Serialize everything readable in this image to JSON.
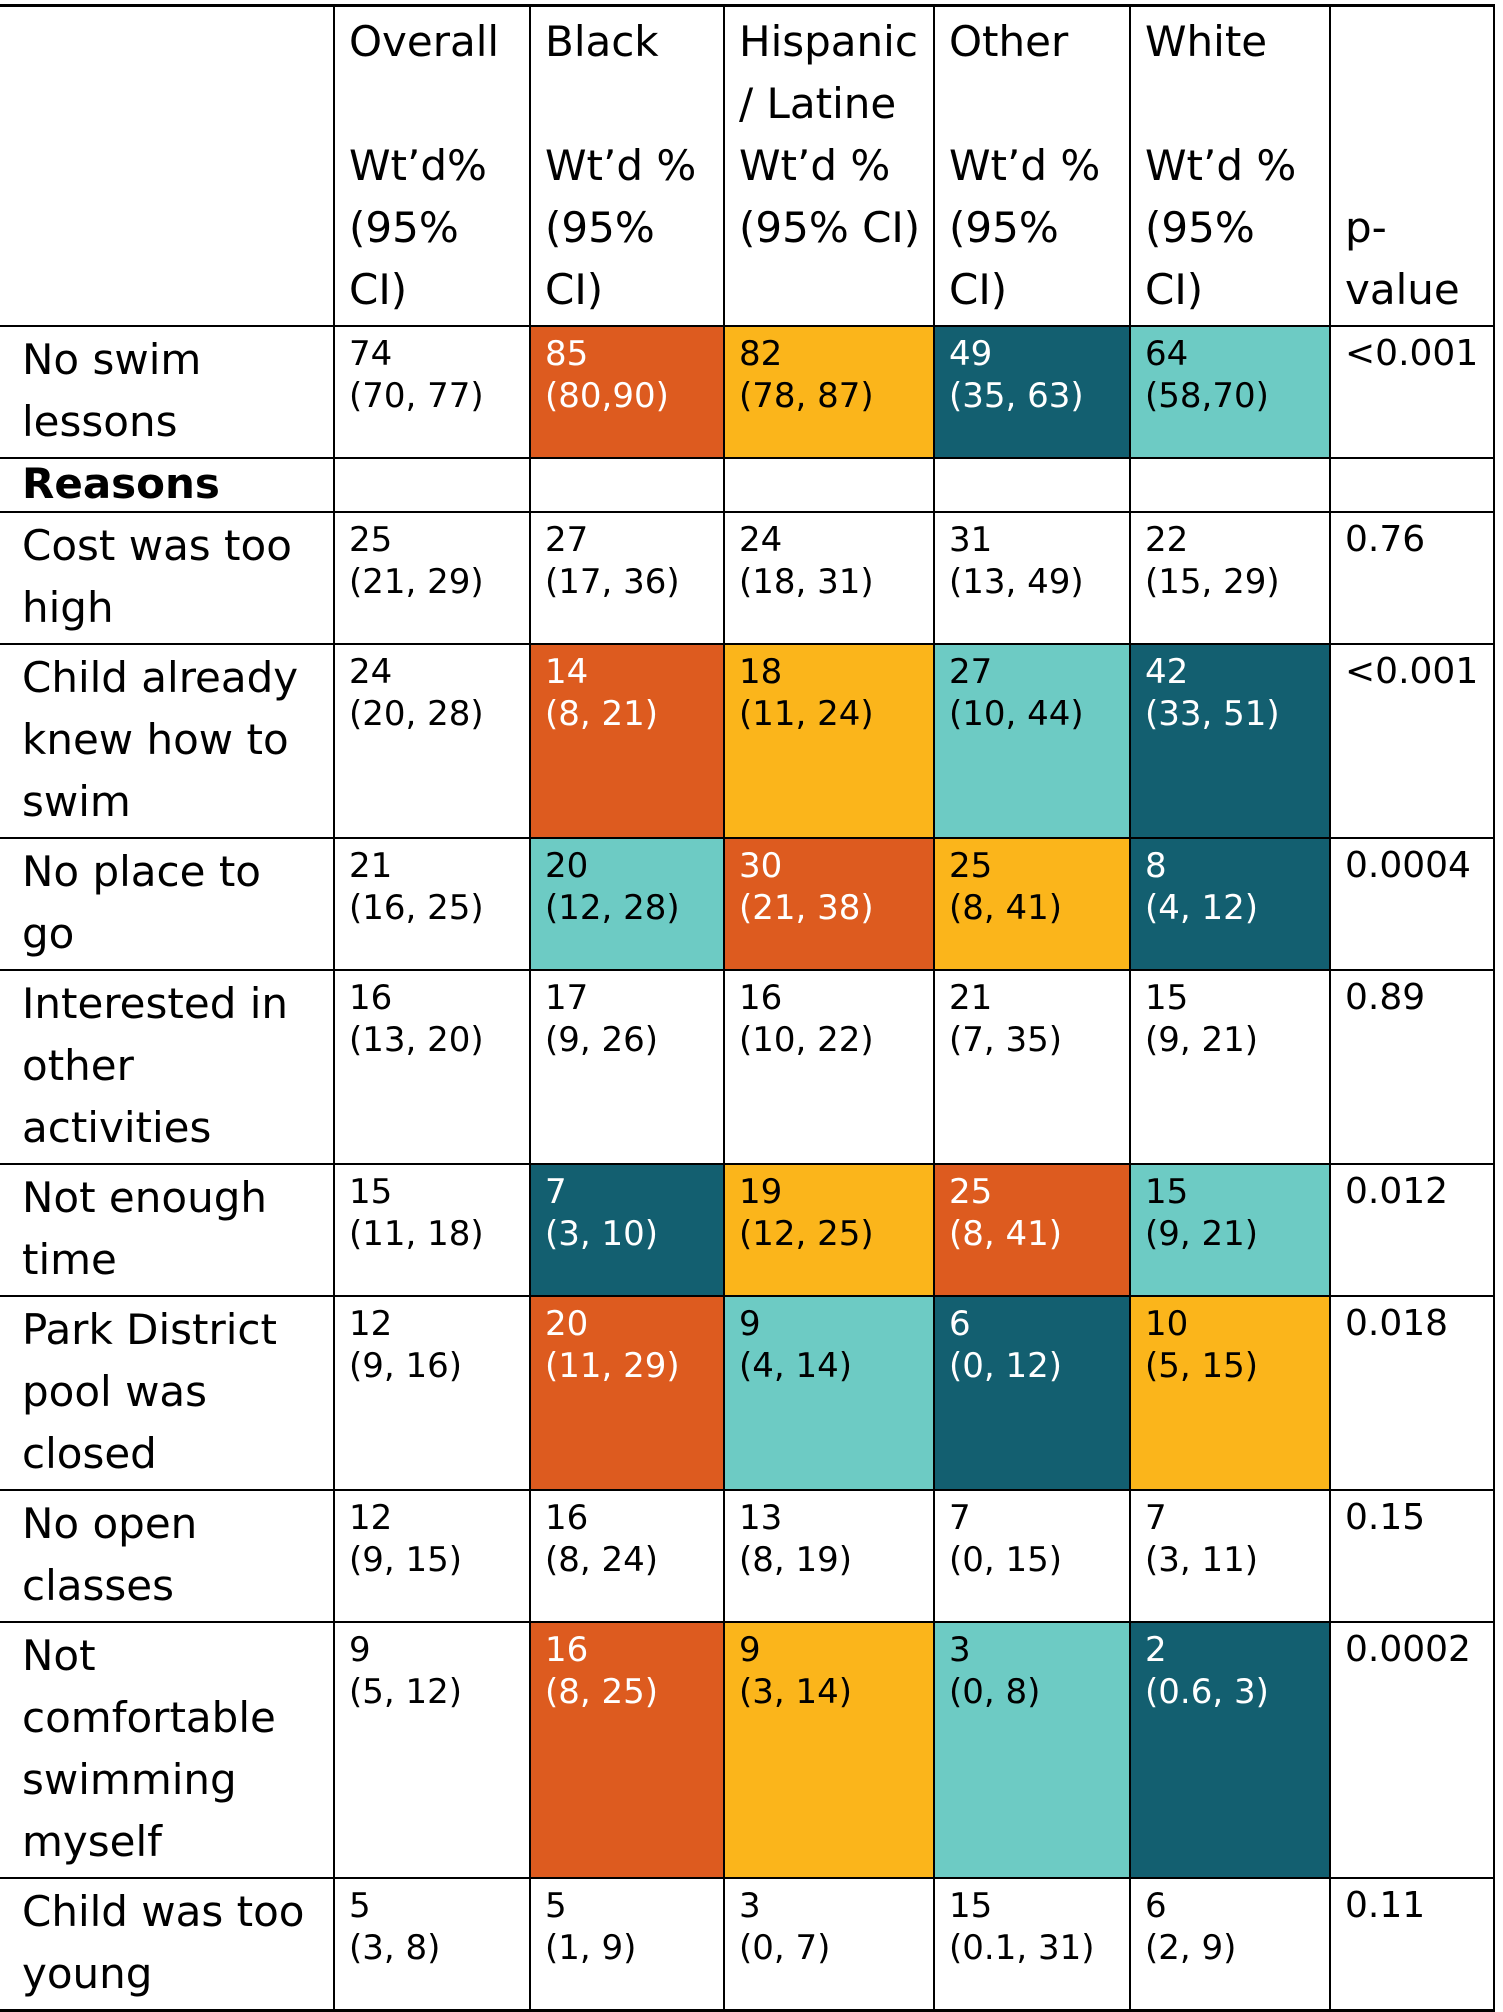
{
  "colors": {
    "orange": "#dd5b1f",
    "yellow": "#fbb51b",
    "teal": "#6dcbc4",
    "dark": "#135f70"
  },
  "header": {
    "overall": [
      "Overall",
      "",
      "Wt’d%",
      "(95%",
      "CI)"
    ],
    "black": [
      "Black",
      "",
      "Wt’d %",
      "(95%",
      "CI)"
    ],
    "hispanic": [
      "Hispanic",
      "/ Latine",
      "Wt’d %",
      "(95% CI)",
      ""
    ],
    "other": [
      "Other",
      "",
      "Wt’d %",
      "(95%",
      "CI)"
    ],
    "white": [
      "White",
      "",
      "Wt’d %",
      "(95%",
      "CI)"
    ],
    "pvalue": [
      "",
      "",
      "",
      "p-",
      "value"
    ]
  },
  "rows": [
    {
      "label": "No swim lessons",
      "cells": [
        {
          "v": "74",
          "ci": "(70, 77)",
          "c": ""
        },
        {
          "v": "85",
          "ci": "(80,90)",
          "c": "orange"
        },
        {
          "v": "82",
          "ci": "(78, 87)",
          "c": "yellow"
        },
        {
          "v": "49",
          "ci": "(35, 63)",
          "c": "dark"
        },
        {
          "v": "64",
          "ci": "(58,70)",
          "c": "teal"
        }
      ],
      "p": "<0.001"
    },
    {
      "label": "Reasons",
      "section": true
    },
    {
      "label": "Cost was too high",
      "cells": [
        {
          "v": "25",
          "ci": "(21, 29)",
          "c": ""
        },
        {
          "v": "27",
          "ci": "(17, 36)",
          "c": ""
        },
        {
          "v": "24",
          "ci": "(18, 31)",
          "c": ""
        },
        {
          "v": "31",
          "ci": "(13, 49)",
          "c": ""
        },
        {
          "v": "22",
          "ci": "(15, 29)",
          "c": ""
        }
      ],
      "p": "0.76"
    },
    {
      "label": "Child already knew how to swim",
      "cells": [
        {
          "v": "24",
          "ci": "(20, 28)",
          "c": ""
        },
        {
          "v": "14",
          "ci": "(8, 21)",
          "c": "orange"
        },
        {
          "v": "18",
          "ci": "(11, 24)",
          "c": "yellow"
        },
        {
          "v": "27",
          "ci": "(10, 44)",
          "c": "teal"
        },
        {
          "v": "42",
          "ci": "(33, 51)",
          "c": "dark"
        }
      ],
      "p": "<0.001"
    },
    {
      "label": "No place to go",
      "cells": [
        {
          "v": "21",
          "ci": "(16, 25)",
          "c": ""
        },
        {
          "v": "20",
          "ci": "(12, 28)",
          "c": "teal"
        },
        {
          "v": "30",
          "ci": "(21, 38)",
          "c": "orange"
        },
        {
          "v": "25",
          "ci": "(8, 41)",
          "c": "yellow"
        },
        {
          "v": "8",
          "ci": "(4, 12)",
          "c": "dark"
        }
      ],
      "p": "0.0004"
    },
    {
      "label": "Interested in other activities",
      "cells": [
        {
          "v": "16",
          "ci": "(13, 20)",
          "c": ""
        },
        {
          "v": "17",
          "ci": "(9, 26)",
          "c": ""
        },
        {
          "v": "16",
          "ci": "(10, 22)",
          "c": ""
        },
        {
          "v": "21",
          "ci": "(7, 35)",
          "c": ""
        },
        {
          "v": "15",
          "ci": "(9, 21)",
          "c": ""
        }
      ],
      "p": "0.89"
    },
    {
      "label": "Not enough time",
      "cells": [
        {
          "v": "15",
          "ci": "(11, 18)",
          "c": ""
        },
        {
          "v": "7",
          "ci": "(3, 10)",
          "c": "dark"
        },
        {
          "v": "19",
          "ci": "(12, 25)",
          "c": "yellow"
        },
        {
          "v": "25",
          "ci": "(8, 41)",
          "c": "orange"
        },
        {
          "v": "15",
          "ci": "(9, 21)",
          "c": "teal"
        }
      ],
      "p": "0.012"
    },
    {
      "label": "Park District pool was closed",
      "cells": [
        {
          "v": "12",
          "ci": "(9, 16)",
          "c": ""
        },
        {
          "v": "20",
          "ci": "(11, 29)",
          "c": "orange"
        },
        {
          "v": "9",
          "ci": "(4, 14)",
          "c": "teal"
        },
        {
          "v": "6",
          "ci": "(0, 12)",
          "c": "dark"
        },
        {
          "v": "10",
          "ci": "(5, 15)",
          "c": "yellow"
        }
      ],
      "p": "0.018"
    },
    {
      "label": "No open classes",
      "cells": [
        {
          "v": "12",
          "ci": "(9, 15)",
          "c": ""
        },
        {
          "v": "16",
          "ci": "(8, 24)",
          "c": ""
        },
        {
          "v": "13",
          "ci": "(8, 19)",
          "c": ""
        },
        {
          "v": "7",
          "ci": "(0, 15)",
          "c": ""
        },
        {
          "v": "7",
          "ci": "(3, 11)",
          "c": ""
        }
      ],
      "p": "0.15"
    },
    {
      "label": "Not comfortable swimming myself",
      "cells": [
        {
          "v": "9",
          "ci": "(5, 12)",
          "c": ""
        },
        {
          "v": "16",
          "ci": "(8, 25)",
          "c": "orange"
        },
        {
          "v": "9",
          "ci": "(3, 14)",
          "c": "yellow"
        },
        {
          "v": "3",
          "ci": "(0, 8)",
          "c": "teal"
        },
        {
          "v": "2",
          "ci": "(0.6, 3)",
          "c": "dark"
        }
      ],
      "p": "0.0002"
    },
    {
      "label": "Child was too young",
      "cells": [
        {
          "v": "5",
          "ci": "(3, 8)",
          "c": ""
        },
        {
          "v": "5",
          "ci": "(1, 9)",
          "c": ""
        },
        {
          "v": "3",
          "ci": "(0, 7)",
          "c": ""
        },
        {
          "v": "15",
          "ci": "(0.1, 31)",
          "c": ""
        },
        {
          "v": "6",
          "ci": "(2, 9)",
          "c": ""
        }
      ],
      "p": "0.11"
    }
  ]
}
